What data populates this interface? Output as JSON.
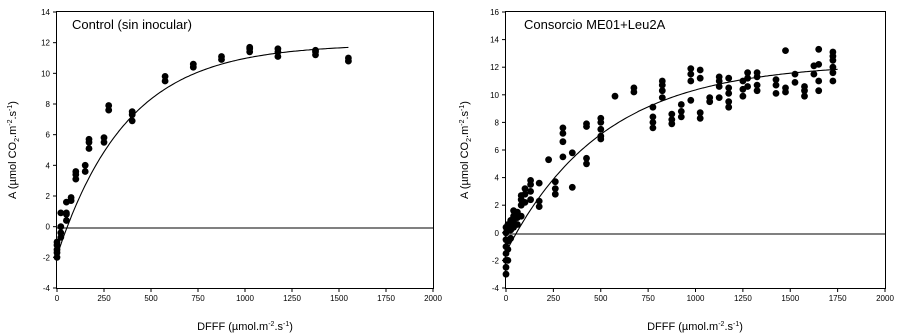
{
  "chart_data": [
    {
      "type": "scatter",
      "title": "Control (sin inocular)",
      "xlabel": {
        "base": "DFFF (µmol.m",
        "e1": "-2",
        "mid": ".s",
        "e2": "-1",
        "end": ")"
      },
      "ylabel": {
        "base": "A (µmol CO",
        "sub": "2",
        "mid1": ".m",
        "e1": "-2",
        "mid2": ".s",
        "e2": "-1",
        "end": ")"
      },
      "xlim": [
        0,
        2000
      ],
      "ylim": [
        -4,
        14
      ],
      "xticks": [
        "0",
        "250",
        "500",
        "750",
        "1000",
        "1250",
        "1500",
        "1750",
        "2000"
      ],
      "yticks": [
        "-4",
        "-2",
        "0",
        "2",
        "4",
        "6",
        "8",
        "10",
        "12",
        "14"
      ],
      "hline": 0,
      "points": [
        [
          0,
          -2.0
        ],
        [
          0,
          -1.7
        ],
        [
          0,
          -1.5
        ],
        [
          0,
          -1.2
        ],
        [
          0,
          -1.0
        ],
        [
          20,
          -0.7
        ],
        [
          20,
          -0.4
        ],
        [
          20,
          0.0
        ],
        [
          20,
          0.9
        ],
        [
          50,
          0.4
        ],
        [
          50,
          0.8
        ],
        [
          50,
          1.6
        ],
        [
          50,
          0.9
        ],
        [
          75,
          1.7
        ],
        [
          75,
          1.9
        ],
        [
          100,
          3.1
        ],
        [
          100,
          3.4
        ],
        [
          100,
          3.6
        ],
        [
          150,
          3.6
        ],
        [
          150,
          4.0
        ],
        [
          170,
          5.1
        ],
        [
          170,
          5.5
        ],
        [
          170,
          5.7
        ],
        [
          250,
          5.5
        ],
        [
          250,
          5.8
        ],
        [
          275,
          7.6
        ],
        [
          275,
          7.9
        ],
        [
          400,
          6.9
        ],
        [
          400,
          7.3
        ],
        [
          400,
          7.5
        ],
        [
          575,
          9.5
        ],
        [
          575,
          9.8
        ],
        [
          725,
          10.4
        ],
        [
          725,
          10.6
        ],
        [
          875,
          10.9
        ],
        [
          875,
          11.1
        ],
        [
          1025,
          11.4
        ],
        [
          1025,
          11.6
        ],
        [
          1025,
          11.7
        ],
        [
          1175,
          11.1
        ],
        [
          1175,
          11.4
        ],
        [
          1175,
          11.6
        ],
        [
          1375,
          11.2
        ],
        [
          1375,
          11.4
        ],
        [
          1375,
          11.5
        ],
        [
          1550,
          10.8
        ],
        [
          1550,
          11.0
        ]
      ],
      "curve": {
        "amax": 13.8,
        "k": 0.0027,
        "rd": 1.9,
        "xmax": 1550
      }
    },
    {
      "type": "scatter",
      "title": "Consorcio ME01+Leu2A",
      "xlabel": {
        "base": "DFFF (µmol.m",
        "e1": "-2",
        "mid": ".s",
        "e2": "-1",
        "end": ")"
      },
      "ylabel": {
        "base": "A (µmol CO",
        "sub": "2",
        "mid1": ".m",
        "e1": "-2",
        "mid2": ".s",
        "e2": "-1",
        "end": ")"
      },
      "xlim": [
        0,
        2000
      ],
      "ylim": [
        -4,
        16
      ],
      "xticks": [
        "0",
        "250",
        "500",
        "750",
        "1000",
        "1250",
        "1500",
        "1750",
        "2000"
      ],
      "yticks": [
        "-4",
        "-2",
        "0",
        "2",
        "4",
        "6",
        "8",
        "10",
        "12",
        "14",
        "16"
      ],
      "hline": 0,
      "points": [
        [
          0,
          -3.0
        ],
        [
          0,
          -2.5
        ],
        [
          0,
          -2.0
        ],
        [
          0,
          -1.5
        ],
        [
          0,
          -1.0
        ],
        [
          0,
          -0.5
        ],
        [
          0,
          0.0
        ],
        [
          0,
          0.4
        ],
        [
          10,
          -2.0
        ],
        [
          10,
          -1.2
        ],
        [
          10,
          -0.6
        ],
        [
          10,
          0.2
        ],
        [
          10,
          0.6
        ],
        [
          25,
          -0.4
        ],
        [
          25,
          0.2
        ],
        [
          25,
          0.5
        ],
        [
          25,
          0.9
        ],
        [
          40,
          0.4
        ],
        [
          40,
          0.8
        ],
        [
          40,
          1.2
        ],
        [
          40,
          1.6
        ],
        [
          60,
          0.6
        ],
        [
          60,
          1.1
        ],
        [
          60,
          1.5
        ],
        [
          80,
          1.2
        ],
        [
          80,
          2.0
        ],
        [
          80,
          2.4
        ],
        [
          80,
          2.7
        ],
        [
          100,
          2.2
        ],
        [
          100,
          2.8
        ],
        [
          100,
          3.2
        ],
        [
          130,
          2.4
        ],
        [
          130,
          3.0
        ],
        [
          130,
          3.5
        ],
        [
          130,
          3.8
        ],
        [
          175,
          1.9
        ],
        [
          175,
          2.3
        ],
        [
          175,
          3.6
        ],
        [
          225,
          5.3
        ],
        [
          260,
          2.8
        ],
        [
          260,
          3.2
        ],
        [
          260,
          3.7
        ],
        [
          300,
          5.5
        ],
        [
          300,
          6.6
        ],
        [
          300,
          7.2
        ],
        [
          300,
          7.6
        ],
        [
          350,
          3.3
        ],
        [
          350,
          5.8
        ],
        [
          425,
          5.0
        ],
        [
          425,
          5.4
        ],
        [
          425,
          7.7
        ],
        [
          425,
          7.9
        ],
        [
          500,
          6.8
        ],
        [
          500,
          7.0
        ],
        [
          500,
          7.5
        ],
        [
          500,
          8.0
        ],
        [
          500,
          8.3
        ],
        [
          575,
          9.9
        ],
        [
          675,
          10.2
        ],
        [
          675,
          10.5
        ],
        [
          775,
          7.6
        ],
        [
          775,
          8.0
        ],
        [
          775,
          8.4
        ],
        [
          775,
          9.1
        ],
        [
          825,
          9.8
        ],
        [
          825,
          10.3
        ],
        [
          825,
          10.7
        ],
        [
          825,
          11.0
        ],
        [
          875,
          7.9
        ],
        [
          875,
          8.2
        ],
        [
          875,
          8.6
        ],
        [
          925,
          8.4
        ],
        [
          925,
          8.8
        ],
        [
          925,
          9.3
        ],
        [
          975,
          9.6
        ],
        [
          975,
          11.0
        ],
        [
          975,
          11.5
        ],
        [
          975,
          11.9
        ],
        [
          1025,
          8.3
        ],
        [
          1025,
          8.7
        ],
        [
          1025,
          11.2
        ],
        [
          1025,
          11.8
        ],
        [
          1075,
          9.5
        ],
        [
          1075,
          9.8
        ],
        [
          1125,
          9.8
        ],
        [
          1125,
          10.6
        ],
        [
          1125,
          11.0
        ],
        [
          1125,
          11.3
        ],
        [
          1175,
          9.1
        ],
        [
          1175,
          9.5
        ],
        [
          1175,
          10.1
        ],
        [
          1175,
          10.5
        ],
        [
          1175,
          11.2
        ],
        [
          1250,
          9.9
        ],
        [
          1250,
          10.4
        ],
        [
          1250,
          11.0
        ],
        [
          1275,
          10.6
        ],
        [
          1275,
          11.2
        ],
        [
          1275,
          11.6
        ],
        [
          1325,
          10.3
        ],
        [
          1325,
          10.7
        ],
        [
          1325,
          11.3
        ],
        [
          1325,
          11.6
        ],
        [
          1425,
          10.1
        ],
        [
          1425,
          10.7
        ],
        [
          1425,
          11.1
        ],
        [
          1475,
          10.2
        ],
        [
          1475,
          10.5
        ],
        [
          1475,
          13.2
        ],
        [
          1525,
          10.9
        ],
        [
          1525,
          11.5
        ],
        [
          1575,
          9.9
        ],
        [
          1575,
          10.3
        ],
        [
          1575,
          10.6
        ],
        [
          1625,
          11.5
        ],
        [
          1625,
          12.1
        ],
        [
          1650,
          10.3
        ],
        [
          1650,
          11.0
        ],
        [
          1650,
          12.2
        ],
        [
          1650,
          13.3
        ],
        [
          1725,
          11.0
        ],
        [
          1725,
          11.6
        ],
        [
          1725,
          12.0
        ],
        [
          1725,
          12.5
        ],
        [
          1725,
          12.8
        ],
        [
          1725,
          13.1
        ]
      ],
      "curve": {
        "amax": 13.7,
        "k": 0.00195,
        "rd": 1.4,
        "xmax": 1750
      }
    }
  ]
}
